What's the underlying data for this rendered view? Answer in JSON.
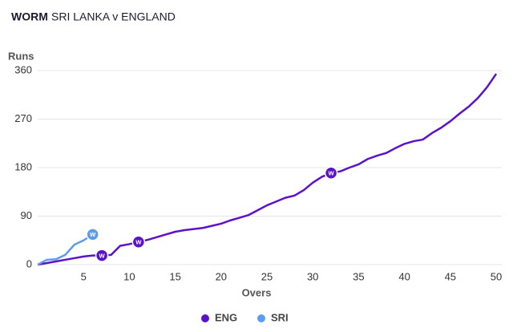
{
  "chart_data": {
    "type": "line",
    "title": "WORM",
    "subtitle": "SRI LANKA v ENGLAND",
    "y_label": "Runs",
    "x_label": "Overs",
    "xlim": [
      0,
      50
    ],
    "xticks": [
      5,
      10,
      15,
      20,
      25,
      30,
      35,
      40,
      45,
      50
    ],
    "ylim": [
      0,
      360
    ],
    "yticks": [
      0,
      90,
      180,
      270,
      360
    ],
    "grid": true,
    "legend": "bottom",
    "wicket_label": "W",
    "series": [
      {
        "name": "ENG",
        "color": "#5c12c9",
        "x": [
          0,
          1,
          2,
          3,
          4,
          5,
          6,
          7,
          8,
          9,
          10,
          11,
          12,
          13,
          14,
          15,
          16,
          17,
          18,
          19,
          20,
          21,
          22,
          23,
          24,
          25,
          26,
          27,
          28,
          29,
          30,
          31,
          32,
          33,
          34,
          35,
          36,
          37,
          38,
          39,
          40,
          41,
          42,
          43,
          44,
          45,
          46,
          47,
          48,
          49,
          50
        ],
        "values": [
          0,
          3,
          6,
          9,
          12,
          15,
          17,
          17,
          18,
          35,
          38,
          42,
          46,
          51,
          56,
          61,
          64,
          66,
          68,
          72,
          76,
          82,
          87,
          92,
          101,
          110,
          117,
          124,
          128,
          138,
          152,
          163,
          170,
          173,
          180,
          186,
          196,
          202,
          207,
          216,
          224,
          229,
          232,
          244,
          254,
          266,
          280,
          293,
          309,
          329,
          354
        ],
        "wickets": [
          7,
          11,
          32
        ]
      },
      {
        "name": "SRI",
        "color": "#5b9cf0",
        "x": [
          0,
          1,
          2,
          3,
          4,
          5,
          6
        ],
        "values": [
          0,
          9,
          10,
          18,
          37,
          45,
          56
        ],
        "wickets": [
          6
        ]
      }
    ]
  }
}
